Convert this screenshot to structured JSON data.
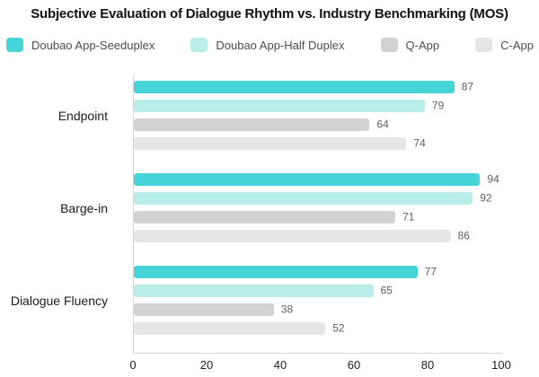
{
  "title": "Subjective Evaluation of Dialogue Rhythm vs. Industry Benchmarking (MOS)",
  "chart_data": {
    "type": "bar",
    "orientation": "horizontal",
    "title": "Subjective Evaluation of Dialogue Rhythm vs. Industry Benchmarking (MOS)",
    "categories": [
      "Endpoint",
      "Barge-in",
      "Dialogue Fluency"
    ],
    "series": [
      {
        "name": "Doubao App-Seeduplex",
        "color": "#45d5d8",
        "values": [
          87,
          94,
          77
        ]
      },
      {
        "name": "Doubao App-Half Duplex",
        "color": "#b9edea",
        "values": [
          79,
          92,
          65
        ]
      },
      {
        "name": "Q-App",
        "color": "#d2d2d2",
        "values": [
          64,
          71,
          38
        ]
      },
      {
        "name": "C-App",
        "color": "#e6e6e6",
        "values": [
          74,
          86,
          52
        ]
      }
    ],
    "x_ticks": [
      "0",
      "20",
      "40",
      "60",
      "80",
      "100"
    ],
    "x_tick_values": [
      0,
      20,
      40,
      60,
      80,
      100
    ],
    "xlim": [
      0,
      100
    ],
    "value_labels_shown": true,
    "legend_position": "top",
    "grid": false,
    "axis_color": "#d4d4d4",
    "background_color": "#ffffff"
  }
}
